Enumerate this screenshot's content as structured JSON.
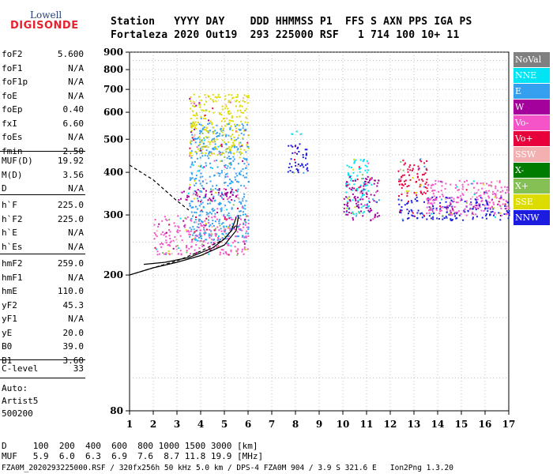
{
  "logo": {
    "top": "Lowell",
    "brand": "DIGISONDE"
  },
  "header": {
    "labels": [
      "Station",
      "YYYY",
      "DAY",
      "DDD",
      "HHMMSS",
      "P1",
      "FFS",
      "S",
      "AXN",
      "PPS",
      "IGA",
      "PS"
    ],
    "values": [
      "Fortaleza",
      "2020",
      "Out19",
      "293",
      "225000",
      "RSF",
      "1",
      "714",
      "100",
      "10+",
      "11"
    ]
  },
  "params": {
    "group1": [
      {
        "name": "foF2",
        "value": "5.600"
      },
      {
        "name": "foF1",
        "value": "N/A"
      },
      {
        "name": "foF1p",
        "value": "N/A"
      },
      {
        "name": "foE",
        "value": "N/A"
      },
      {
        "name": "foEp",
        "value": "0.40"
      },
      {
        "name": "fxI",
        "value": "6.60"
      },
      {
        "name": "foEs",
        "value": "N/A"
      },
      {
        "name": "fmin",
        "value": "2.50"
      }
    ],
    "group2": [
      {
        "name": "MUF(D)",
        "value": "19.92"
      },
      {
        "name": "M(D)",
        "value": "3.56"
      },
      {
        "name": "D",
        "value": "N/A"
      }
    ],
    "group3": [
      {
        "name": "h`F",
        "value": "225.0"
      },
      {
        "name": "h`F2",
        "value": "225.0"
      },
      {
        "name": "h`E",
        "value": "N/A"
      },
      {
        "name": "h`Es",
        "value": "N/A"
      }
    ],
    "group4": [
      {
        "name": "hmF2",
        "value": "259.0"
      },
      {
        "name": "hmF1",
        "value": "N/A"
      },
      {
        "name": "hmE",
        "value": "110.0"
      },
      {
        "name": "yF2",
        "value": "45.3"
      },
      {
        "name": "yF1",
        "value": "N/A"
      },
      {
        "name": "yE",
        "value": "20.0"
      },
      {
        "name": "B0",
        "value": "39.0"
      },
      {
        "name": "B1",
        "value": "3.60"
      }
    ],
    "group5": [
      {
        "name": "C-level",
        "value": "33"
      }
    ]
  },
  "auto": {
    "line1": "Auto:",
    "line2": "Artist5",
    "line3": "500200"
  },
  "legend": [
    {
      "label": "NoVal",
      "color": "#808080"
    },
    {
      "label": "NNE",
      "color": "#00e4f4"
    },
    {
      "label": "E",
      "color": "#36a0f0"
    },
    {
      "label": "W",
      "color": "#a4009c"
    },
    {
      "label": "Vo-",
      "color": "#f454c8"
    },
    {
      "label": "Vo+",
      "color": "#e8003c"
    },
    {
      "label": "SSW",
      "color": "#f4b0b0"
    },
    {
      "label": "X-",
      "color": "#007c00"
    },
    {
      "label": "X+",
      "color": "#84c054"
    },
    {
      "label": "SSE",
      "color": "#dcdc00"
    },
    {
      "label": "NNW",
      "color": "#1c1ce0"
    }
  ],
  "footer": {
    "d_row": {
      "label": "D",
      "values": [
        "100",
        "200",
        "400",
        "600",
        "800",
        "1000",
        "1500",
        "3000"
      ],
      "unit": "[km]"
    },
    "muf_row": {
      "label": "MUF",
      "values": [
        "5.9",
        "6.0",
        "6.3",
        "6.9",
        "7.6",
        "8.7",
        "11.8",
        "19.9"
      ],
      "unit": "[MHz]"
    },
    "info": "FZA0M_2020293225000.RSF / 320fx256h 50 kHz 5.0 km / DPS-4 FZA0M 904 / 3.9 S 321.6 E   Ion2Png 1.3.20"
  },
  "chart_data": {
    "type": "scatter",
    "x_ticks": [
      1,
      2,
      3,
      4,
      5,
      6,
      7,
      8,
      9,
      10,
      11,
      12,
      13,
      14,
      15,
      16,
      17
    ],
    "y_ticks": [
      80,
      200,
      300,
      400,
      500,
      600,
      700,
      800,
      900
    ],
    "xlim": [
      1,
      17
    ],
    "ylim": [
      80,
      900
    ],
    "y_scale": "log",
    "grid": "dotted",
    "clusters": [
      {
        "dir": "NNW",
        "x": [
          12.3,
          17.0
        ],
        "y": [
          290,
          340
        ]
      },
      {
        "dir": "Vo+",
        "x": [
          12.3,
          13.6
        ],
        "y": [
          340,
          440
        ]
      },
      {
        "dir": "Vo-",
        "x": [
          13.5,
          17.0
        ],
        "y": [
          300,
          380
        ]
      },
      {
        "dir": "NNE",
        "x": [
          10.1,
          11.1
        ],
        "y": [
          300,
          440
        ]
      },
      {
        "dir": "W",
        "x": [
          10.0,
          11.5
        ],
        "y": [
          290,
          390
        ]
      },
      {
        "dir": "Vo-",
        "x": [
          2.0,
          6.0
        ],
        "y": [
          230,
          300
        ]
      },
      {
        "dir": "E",
        "x": [
          3.5,
          6.0
        ],
        "y": [
          250,
          560
        ]
      },
      {
        "dir": "SSE",
        "x": [
          3.5,
          6.0
        ],
        "y": [
          450,
          680
        ]
      },
      {
        "dir": "W",
        "x": [
          3.0,
          5.5
        ],
        "y": [
          330,
          360
        ]
      },
      {
        "dir": "NNW",
        "x": [
          7.6,
          8.5
        ],
        "y": [
          400,
          490
        ]
      },
      {
        "dir": "NNE",
        "x": [
          7.8,
          8.3
        ],
        "y": [
          510,
          530
        ]
      }
    ],
    "trace_fitted": {
      "x": [
        1.6,
        2.5,
        3.5,
        4.5,
        5.0,
        5.3,
        5.5
      ],
      "y": [
        215,
        218,
        225,
        240,
        255,
        270,
        295
      ]
    },
    "trace_profile": {
      "x": [
        1.0,
        2.0,
        3.0,
        4.0,
        5.0,
        5.5,
        5.6
      ],
      "y": [
        200,
        210,
        218,
        228,
        245,
        270,
        300
      ]
    },
    "dashed_upper": {
      "x": [
        1.0,
        2.0,
        3.0,
        3.5
      ],
      "y": [
        420,
        380,
        330,
        310
      ]
    },
    "dashed_lower": {
      "x": [
        1.0,
        2.0,
        3.0,
        4.0,
        5.0,
        5.5
      ],
      "y": [
        200,
        210,
        220,
        235,
        255,
        280
      ]
    }
  }
}
